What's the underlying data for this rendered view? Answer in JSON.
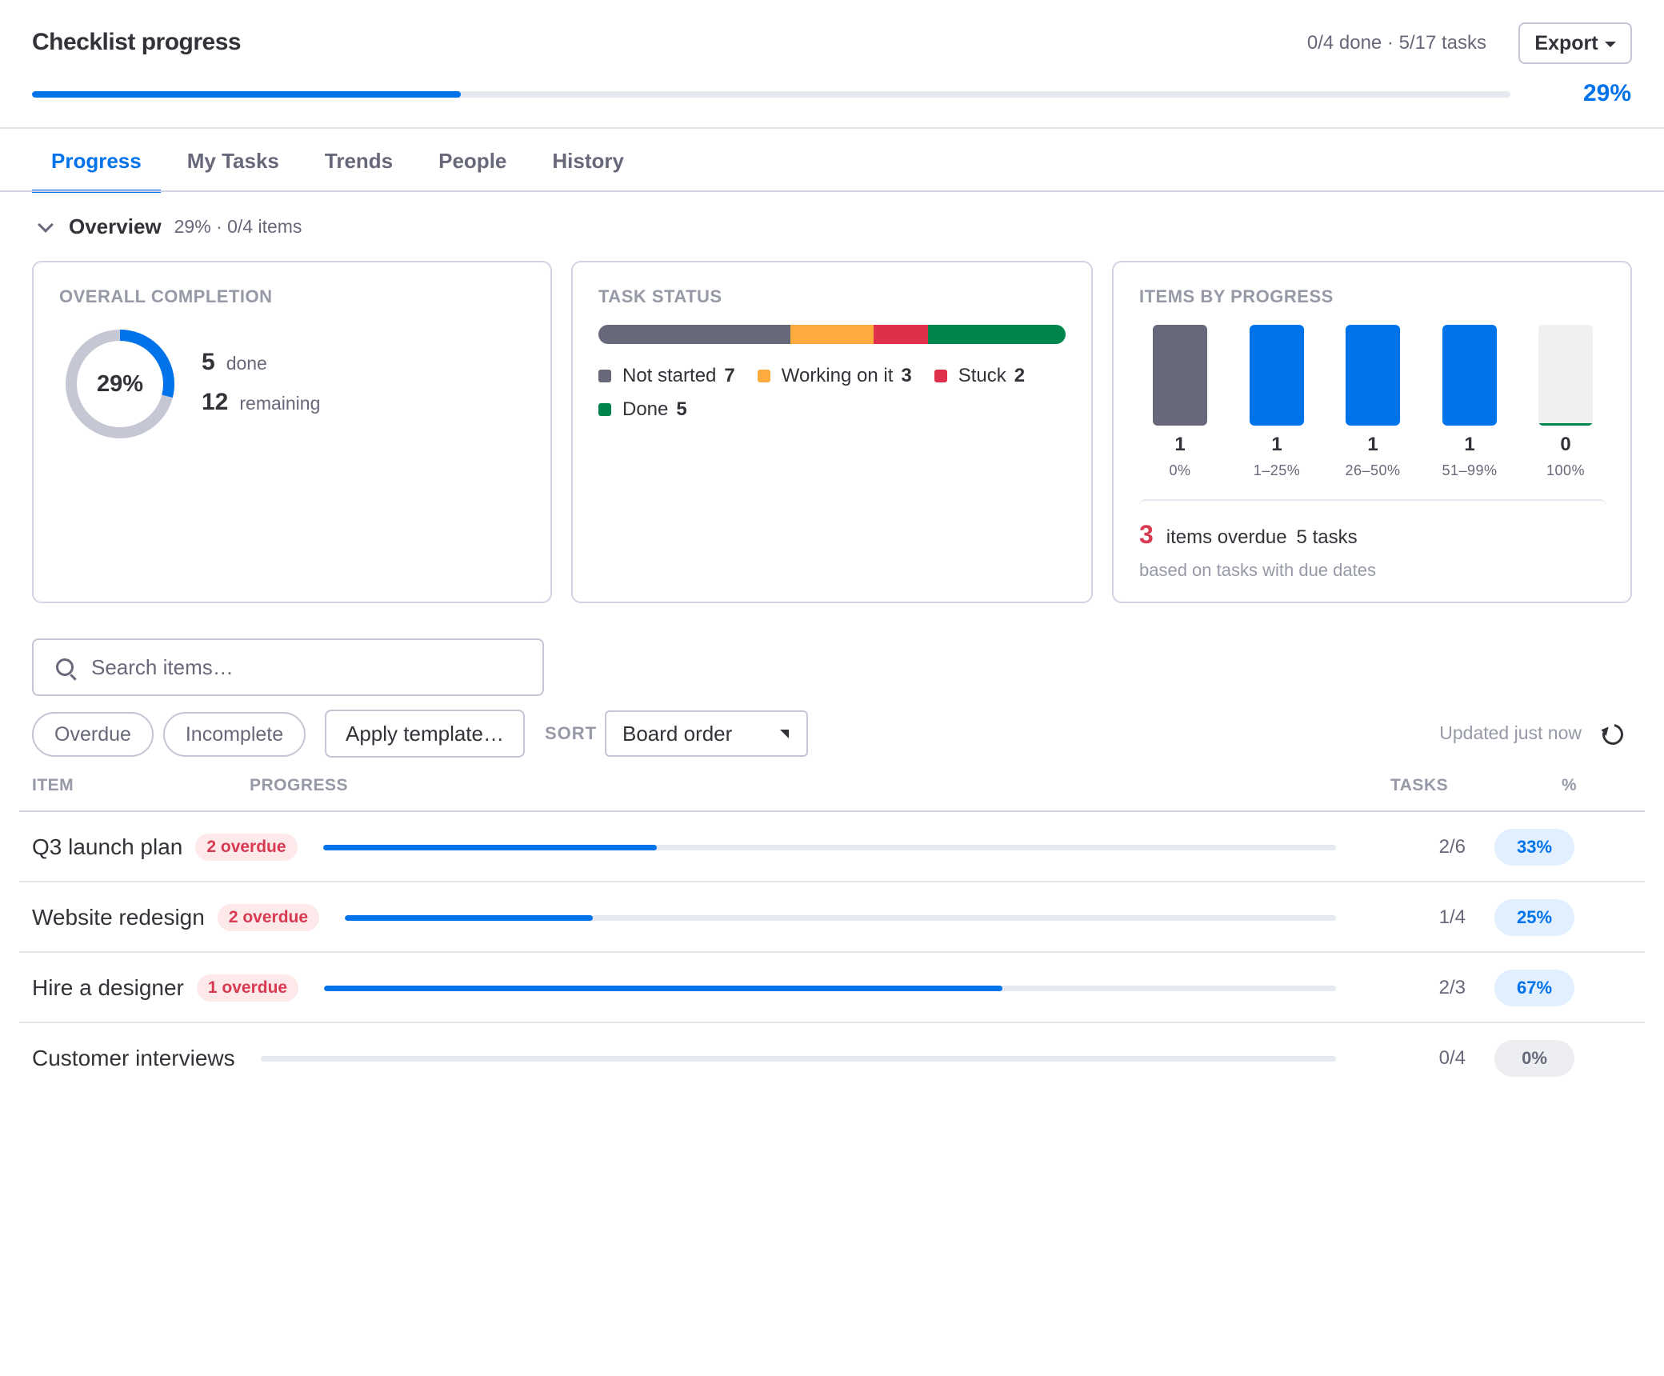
{
  "header": {
    "title": "Checklist progress",
    "summary": "0/4 done · 5/17 tasks",
    "export_label": "Export",
    "progress": 0.29,
    "progress_label": "29%"
  },
  "tabs": [
    {
      "label": "Progress",
      "active": true
    },
    {
      "label": "My Tasks",
      "active": false
    },
    {
      "label": "Trends",
      "active": false
    },
    {
      "label": "People",
      "active": false
    },
    {
      "label": "History",
      "active": false
    }
  ],
  "overview": {
    "label": "Overview",
    "meta": "29% · 0/4 items"
  },
  "overall": {
    "title": "OVERALL COMPLETION",
    "percent_label": "29%",
    "fraction": 0.29,
    "done_count": "5",
    "done_label": "done",
    "remaining_count": "12",
    "remaining_label": "remaining"
  },
  "task_status": {
    "title": "TASK STATUS",
    "segments": [
      {
        "name": "Not started",
        "count": "7",
        "value": 7,
        "color": "#676879"
      },
      {
        "name": "Working on it",
        "count": "3",
        "value": 3,
        "color": "#fdab3d"
      },
      {
        "name": "Stuck",
        "count": "2",
        "value": 2,
        "color": "#df2f4a"
      },
      {
        "name": "Done",
        "count": "5",
        "value": 5,
        "color": "#00854d"
      }
    ]
  },
  "items_by_progress": {
    "title": "ITEMS BY PROGRESS",
    "buckets": [
      {
        "count": "1",
        "value": 1,
        "label": "0%",
        "color": "#676879"
      },
      {
        "count": "1",
        "value": 1,
        "label": "1–25%",
        "color": "#0073ea"
      },
      {
        "count": "1",
        "value": 1,
        "label": "26–50%",
        "color": "#0073ea"
      },
      {
        "count": "1",
        "value": 1,
        "label": "51–99%",
        "color": "#0073ea"
      },
      {
        "count": "0",
        "value": 0,
        "label": "100%",
        "color": "#00854d"
      }
    ],
    "overdue_count": "3",
    "overdue_label": "items overdue",
    "overdue_tasks": "5 tasks",
    "note": "based on tasks with due dates"
  },
  "filters": {
    "search_placeholder": "Search items…",
    "chips": [
      "Overdue",
      "Incomplete"
    ],
    "template_label": "Apply template…",
    "sort_label": "SORT",
    "sort_value": "Board order",
    "updated": "Updated just now"
  },
  "table": {
    "headers": {
      "item": "ITEM",
      "progress": "PROGRESS",
      "tasks": "TASKS",
      "pct": "%"
    },
    "rows": [
      {
        "name": "Q3 launch plan",
        "overdue": "2 overdue",
        "progress": 0.33,
        "tasks": "2/6",
        "pct": "33%"
      },
      {
        "name": "Website redesign",
        "overdue": "2 overdue",
        "progress": 0.25,
        "tasks": "1/4",
        "pct": "25%"
      },
      {
        "name": "Hire a designer",
        "overdue": "1 overdue",
        "progress": 0.67,
        "tasks": "2/3",
        "pct": "67%"
      },
      {
        "name": "Customer interviews",
        "overdue": "",
        "progress": 0,
        "tasks": "0/4",
        "pct": "0%"
      }
    ]
  }
}
